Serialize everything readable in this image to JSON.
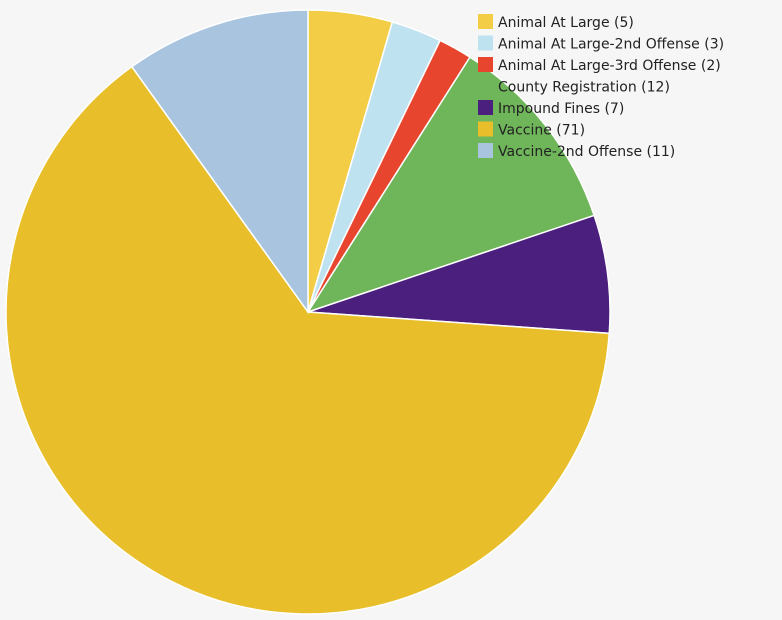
{
  "chart_data": {
    "type": "pie",
    "title": "",
    "categories": [
      "Animal At Large",
      "Animal At Large-2nd Offense",
      "Animal At Large-3rd Offense",
      "County Registration",
      "Impound Fines",
      "Vaccine",
      "Vaccine-2nd Offense"
    ],
    "values": [
      5,
      3,
      2,
      12,
      7,
      71,
      11
    ],
    "colors": [
      "#f2cd45",
      "#bfe2f0",
      "#e8452e",
      "#6fb55a",
      "#4b1f7d",
      "#e8be2a",
      "#a9c4df"
    ],
    "legend": {
      "placement": "top-right",
      "entries": [
        "Animal At Large (5)",
        "Animal At Large-2nd Offense (3)",
        "Animal At Large-3rd Offense (2)",
        "County Registration (12)",
        "Impound Fines (7)",
        "Vaccine (71)",
        "Vaccine-2nd Offense (11)"
      ]
    }
  }
}
